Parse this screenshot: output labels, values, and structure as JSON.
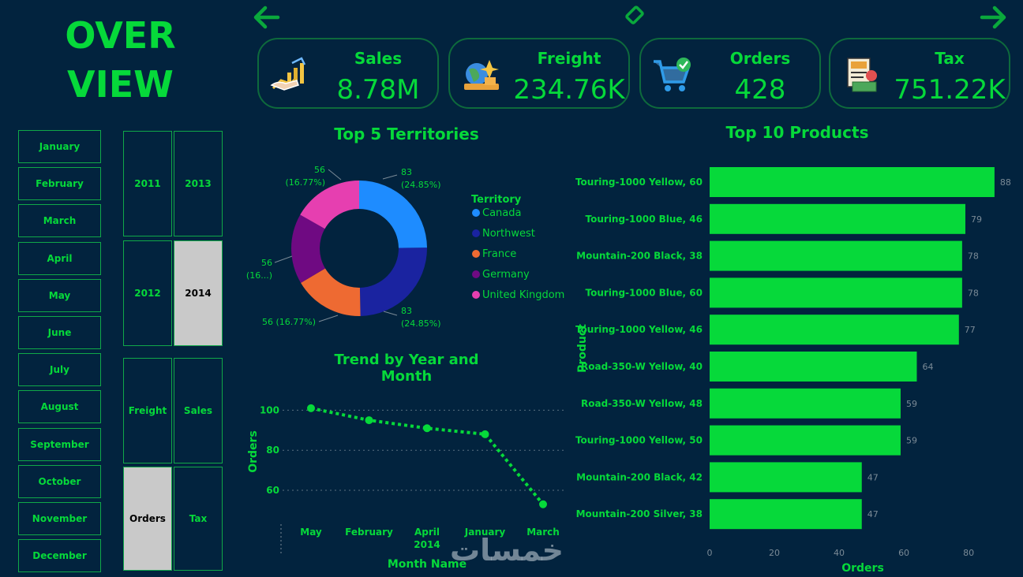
{
  "title_line1": "OVER",
  "title_line2": "VIEW",
  "kpis": [
    {
      "label": "Sales",
      "value": "8.78M",
      "icon": "sales-growth-icon"
    },
    {
      "label": "Freight",
      "value": "234.76K",
      "icon": "global-freight-icon"
    },
    {
      "label": "Orders",
      "value": "428",
      "icon": "shopping-cart-icon"
    },
    {
      "label": "Tax",
      "value": "751.22K",
      "icon": "tax-document-icon"
    }
  ],
  "months": [
    "January",
    "February",
    "March",
    "April",
    "May",
    "June",
    "July",
    "August",
    "September",
    "October",
    "November",
    "December"
  ],
  "years": [
    {
      "label": "2011",
      "selected": false
    },
    {
      "label": "2013",
      "selected": false
    },
    {
      "label": "2012",
      "selected": false
    },
    {
      "label": "2014",
      "selected": true
    }
  ],
  "measures": [
    {
      "label": "Freight",
      "selected": false
    },
    {
      "label": "Sales",
      "selected": false
    },
    {
      "label": "Orders",
      "selected": true
    },
    {
      "label": "Tax",
      "selected": false
    }
  ],
  "colors": {
    "accent": "#06d93a",
    "background": "#02233e",
    "selected": "#c9c9c9"
  },
  "donut": {
    "title": "Top 5 Territories",
    "legend_title": "Territory",
    "chart_data": {
      "type": "pie",
      "slices": [
        {
          "name": "Canada",
          "value": 83,
          "label": "83",
          "pct": "(24.85%)",
          "color": "#1e8cff"
        },
        {
          "name": "Northwest",
          "value": 83,
          "label": "83",
          "pct": "(24.85%)",
          "color": "#1a23a0"
        },
        {
          "name": "France",
          "value": 56,
          "label": "56 (16.77%)",
          "pct": "",
          "color": "#ee6a32"
        },
        {
          "name": "Germany",
          "value": 56,
          "label": "56",
          "pct": "(16...)",
          "color": "#6f0a82"
        },
        {
          "name": "United Kingdom",
          "value": 56,
          "label": "56",
          "pct": "(16.77%)",
          "color": "#e63fb0"
        }
      ]
    }
  },
  "trend": {
    "title": "Trend by Year and Month",
    "xlabel": "Month Name",
    "ylabel": "Orders",
    "chart_data": {
      "type": "line",
      "x": [
        "May",
        "February",
        "April",
        "January",
        "March"
      ],
      "x_sub": [
        "",
        "",
        "2014",
        "",
        ""
      ],
      "values": [
        101,
        95,
        91,
        88,
        53
      ],
      "yticks": [
        "100",
        "80",
        "60"
      ],
      "ytick_values": [
        100,
        80,
        60
      ],
      "ylim": [
        47,
        110
      ]
    }
  },
  "products": {
    "title": "Top 10 Products",
    "xlabel": "Orders",
    "ylabel": "Product",
    "chart_data": {
      "type": "bar",
      "categories": [
        "Touring-1000 Yellow, 60",
        "Touring-1000 Blue, 46",
        "Mountain-200 Black, 38",
        "Touring-1000 Blue, 60",
        "Touring-1000 Yellow, 46",
        "Road-350-W Yellow, 40",
        "Road-350-W Yellow, 48",
        "Touring-1000 Yellow, 50",
        "Mountain-200 Black, 42",
        "Mountain-200 Silver, 38"
      ],
      "values": [
        88,
        79,
        78,
        78,
        77,
        64,
        59,
        59,
        47,
        47
      ],
      "xticks": [
        "0",
        "20",
        "40",
        "60",
        "80"
      ],
      "xtick_values": [
        0,
        20,
        40,
        60,
        80
      ],
      "xlim": [
        0,
        89
      ]
    }
  },
  "watermark": "خمسات"
}
